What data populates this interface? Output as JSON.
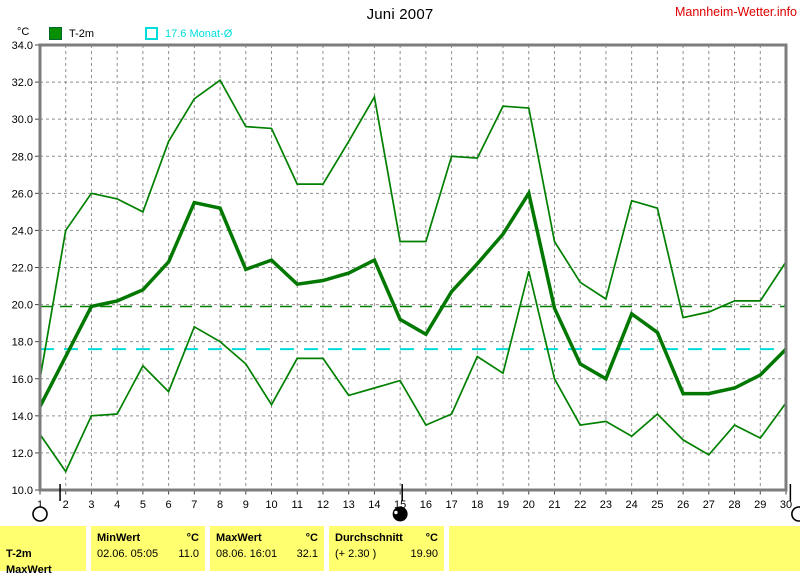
{
  "header": {
    "title": "Juni 2007",
    "site": "Mannheim-Wetter.info",
    "site_color": "#e00000"
  },
  "legend": {
    "unit": "°C",
    "series_main": {
      "label": "T-2m",
      "color": "#089000"
    },
    "series_avg": {
      "label": "17.6 Monat-Ø",
      "color": "#00dcdc"
    }
  },
  "chart_data": {
    "type": "line",
    "title": "Juni 2007",
    "ylabel": "°C",
    "xlabel": "",
    "grid": true,
    "legend_position": "top-left",
    "ylim": [
      10,
      34
    ],
    "ytick_values": [
      34,
      32,
      30,
      28,
      26,
      24,
      22,
      20,
      18,
      16,
      14,
      12,
      10
    ],
    "ytick_labels": [
      "34.0",
      "32.0",
      "30.0",
      "28.0",
      "26.0",
      "24.0",
      "22.0",
      "20.0",
      "18.0",
      "16.0",
      "14.0",
      "12.0",
      "10.0"
    ],
    "x": [
      1,
      2,
      3,
      4,
      5,
      6,
      7,
      8,
      9,
      10,
      11,
      12,
      13,
      14,
      15,
      16,
      17,
      18,
      19,
      20,
      21,
      22,
      23,
      24,
      25,
      26,
      27,
      28,
      29,
      30
    ],
    "xtick_labels": [
      "1",
      "2",
      "3",
      "4",
      "5",
      "6",
      "7",
      "8",
      "9",
      "10",
      "11",
      "12",
      "13",
      "14",
      "15",
      "16",
      "17",
      "18",
      "19",
      "20",
      "21",
      "22",
      "23",
      "24",
      "25",
      "26",
      "27",
      "28",
      "29",
      "30"
    ],
    "series": [
      {
        "name": "T-2m daily maximum",
        "color": "#008000",
        "width": 1.7,
        "values": [
          16.0,
          24.0,
          26.0,
          25.7,
          25.0,
          28.8,
          31.1,
          32.1,
          29.6,
          29.5,
          26.5,
          26.5,
          28.8,
          31.2,
          23.4,
          23.4,
          28.0,
          27.9,
          30.7,
          30.6,
          23.4,
          21.2,
          20.3,
          25.6,
          25.2,
          19.3,
          19.6,
          20.2,
          20.2,
          22.3
        ]
      },
      {
        "name": "T-2m daily mean",
        "color": "#007800",
        "width": 3.5,
        "values": [
          14.5,
          17.2,
          19.9,
          20.2,
          20.8,
          22.3,
          25.5,
          25.2,
          21.9,
          22.4,
          21.1,
          21.3,
          21.7,
          22.4,
          19.2,
          18.4,
          20.7,
          22.2,
          23.8,
          26.0,
          19.8,
          16.8,
          16.0,
          19.5,
          18.5,
          15.2,
          15.2,
          15.5,
          16.2,
          17.6
        ]
      },
      {
        "name": "T-2m daily minimum",
        "color": "#008000",
        "width": 1.7,
        "values": [
          13.0,
          11.0,
          14.0,
          14.1,
          16.7,
          15.3,
          18.8,
          18.0,
          16.8,
          14.6,
          17.1,
          17.1,
          15.1,
          15.5,
          15.9,
          13.5,
          14.1,
          17.2,
          16.3,
          21.8,
          16.0,
          13.5,
          13.7,
          12.9,
          14.1,
          12.7,
          11.9,
          13.5,
          12.8,
          14.7
        ]
      }
    ],
    "ref_lines": [
      {
        "label": "Durchschnitt",
        "value": 19.9,
        "color": "#008000",
        "dash": "12,8",
        "width": 1.5
      },
      {
        "label": "Monat-Ø",
        "value": 17.6,
        "color": "#00dcdc",
        "dash": "14,10",
        "width": 2
      }
    ],
    "range_selector": {
      "open_circle_days": [
        1,
        30.5
      ],
      "filled_circle_day": 15,
      "tick_days": [
        1.78,
        15.08,
        30.17
      ]
    },
    "colors": {
      "grid": "#909090",
      "border": "#7d7d7d"
    }
  },
  "footer": {
    "param": "T-2m",
    "clipped_row_label": "MaxWert",
    "cols": [
      {
        "header": "MinWert",
        "unit": "°C",
        "datetime": "02.06.  05:05",
        "value": "11.0"
      },
      {
        "header": "MaxWert",
        "unit": "°C",
        "datetime": "08.06.  16:01",
        "value": "32.1"
      },
      {
        "header": "Durchschnitt",
        "unit": "°C",
        "datetime": "(+ 2.30 )",
        "value": "19.90"
      }
    ]
  }
}
